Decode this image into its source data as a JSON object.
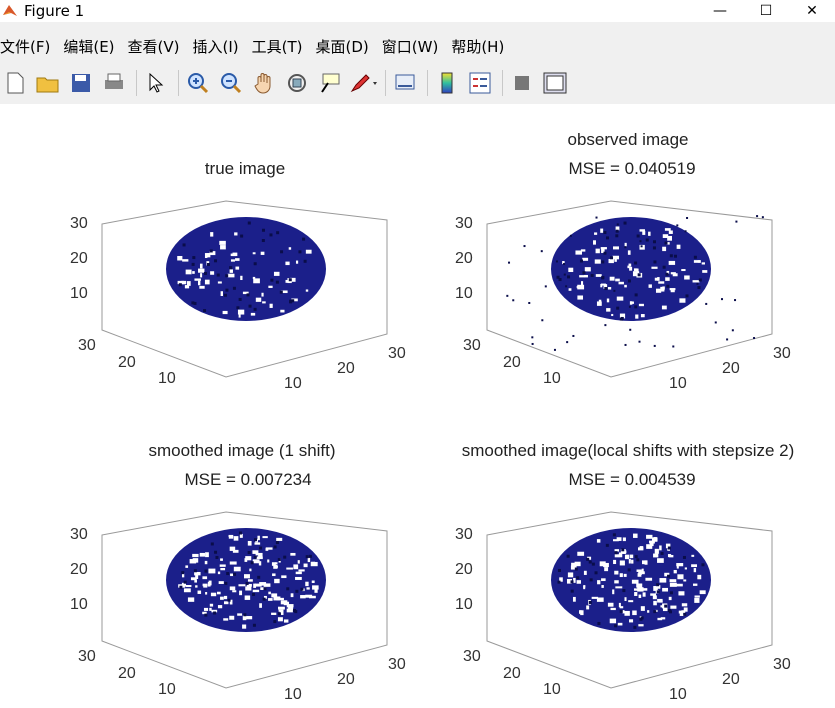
{
  "window": {
    "title": "Figure 1"
  },
  "menu": [
    "文件(F)",
    "编辑(E)",
    "查看(V)",
    "插入(I)",
    "工具(T)",
    "桌面(D)",
    "窗口(W)",
    "帮助(H)"
  ],
  "toolbar_icons": [
    "new-figure-icon",
    "open-file-icon",
    "save-icon",
    "print-icon",
    "edit-plot-icon",
    "zoom-in-icon",
    "zoom-out-icon",
    "pan-icon",
    "rotate-3d-icon",
    "data-cursor-icon",
    "brush-icon",
    "link-plot-icon",
    "colorbar-icon",
    "legend-icon",
    "hide-plot-tools-icon",
    "show-plot-tools-icon"
  ],
  "plots": [
    {
      "title1": "true image",
      "title2": "",
      "ztick": [
        "30",
        "20",
        "10"
      ],
      "xtick": [
        "30",
        "20",
        "10"
      ],
      "ytick": [
        "10",
        "20",
        "30"
      ]
    },
    {
      "title1": "observed image",
      "title2": "MSE = 0.040519",
      "ztick": [
        "30",
        "20",
        "10"
      ],
      "xtick": [
        "30",
        "20",
        "10"
      ],
      "ytick": [
        "10",
        "20",
        "30"
      ]
    },
    {
      "title1": "smoothed image (1 shift)",
      "title2": "MSE = 0.007234",
      "ztick": [
        "30",
        "20",
        "10"
      ],
      "xtick": [
        "30",
        "20",
        "10"
      ],
      "ytick": [
        "10",
        "20",
        "30"
      ]
    },
    {
      "title1": "smoothed image(local shifts with stepsize 2)",
      "title2": "MSE = 0.004539",
      "ztick": [
        "30",
        "20",
        "10"
      ],
      "xtick": [
        "30",
        "20",
        "10"
      ],
      "ytick": [
        "10",
        "20",
        "30"
      ]
    }
  ],
  "colors": {
    "voxel": "#1b1f8a",
    "voxel_dark": "#0a0d4a",
    "axis": "#333333"
  }
}
